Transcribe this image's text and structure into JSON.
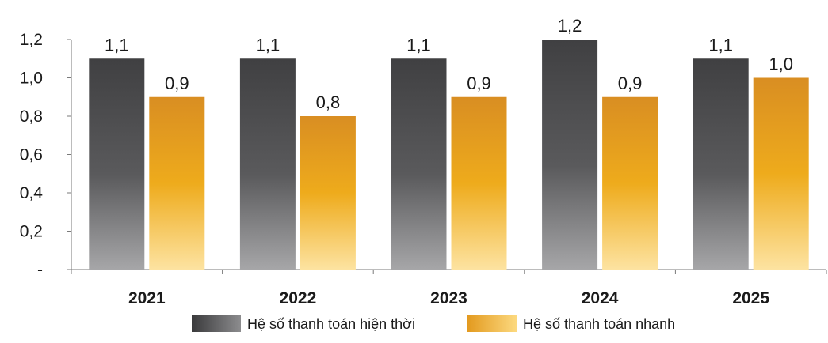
{
  "chart_data": {
    "type": "bar",
    "categories": [
      "2021",
      "2022",
      "2023",
      "2024",
      "2025"
    ],
    "series": [
      {
        "name": "Hệ số thanh toán hiện thời",
        "values": [
          1.1,
          1.1,
          1.1,
          1.2,
          1.1
        ],
        "value_labels": [
          "1,1",
          "1,1",
          "1,1",
          "1,2",
          "1,1"
        ],
        "color": "#4a4a4c"
      },
      {
        "name": "Hệ số thanh toán nhanh",
        "values": [
          0.9,
          0.8,
          0.9,
          0.9,
          1.0
        ],
        "value_labels": [
          "0,9",
          "0,8",
          "0,9",
          "0,9",
          "1,0"
        ],
        "color": "#e8a317"
      }
    ],
    "y_ticks": [
      0,
      0.2,
      0.4,
      0.6,
      0.8,
      1.0,
      1.2
    ],
    "y_tick_labels": [
      "-",
      "0,2",
      "0,4",
      "0,6",
      "0,8",
      "1,0",
      "1,2"
    ],
    "ylim": [
      0,
      1.2
    ],
    "grid": false,
    "legend_position": "bottom-center"
  }
}
